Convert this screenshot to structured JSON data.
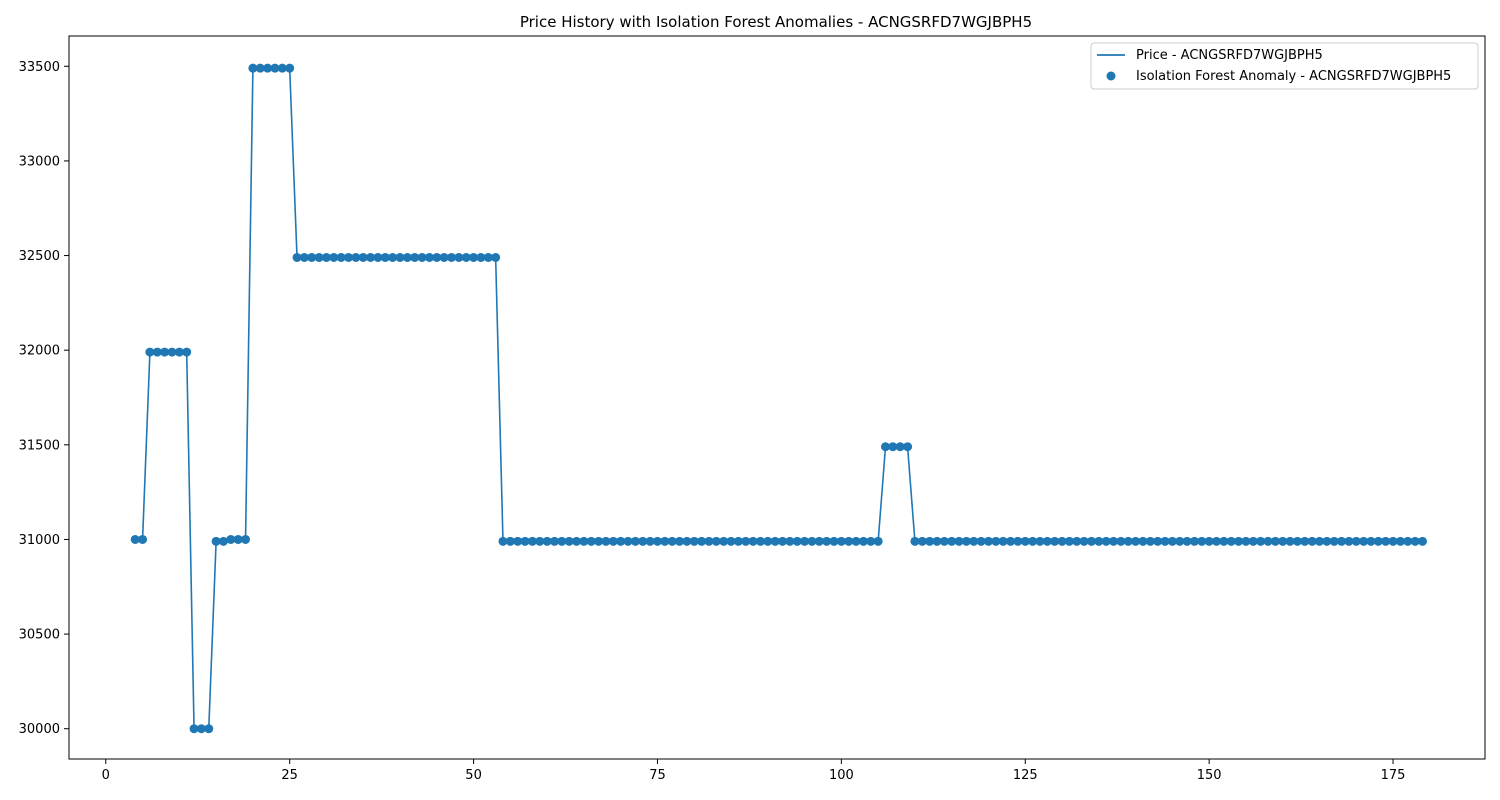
{
  "chart_data": {
    "type": "line",
    "title": "Price History with Isolation Forest Anomalies - ACNGSRFD7WGJBPH5",
    "xlabel": "",
    "ylabel": "",
    "xlim": [
      -5,
      187.5
    ],
    "ylim": [
      29840,
      33660
    ],
    "xticks": [
      0,
      25,
      50,
      75,
      100,
      125,
      150,
      175
    ],
    "yticks": [
      30000,
      30500,
      31000,
      31500,
      32000,
      32500,
      33000,
      33500
    ],
    "grid": false,
    "legend_position": "top-right",
    "colors": {
      "series": "#1f77b4"
    },
    "series": [
      {
        "name": "Price - ACNGSRFD7WGJBPH5",
        "kind": "line"
      },
      {
        "name": "Isolation Forest Anomaly - ACNGSRFD7WGJBPH5",
        "kind": "scatter"
      }
    ],
    "segments": [
      {
        "from": 4,
        "to": 5,
        "value": 31000
      },
      {
        "from": 6,
        "to": 11,
        "value": 31990
      },
      {
        "from": 12,
        "to": 14,
        "value": 30000
      },
      {
        "from": 15,
        "to": 16,
        "value": 30990
      },
      {
        "from": 17,
        "to": 19,
        "value": 31000
      },
      {
        "from": 20,
        "to": 25,
        "value": 33490
      },
      {
        "from": 26,
        "to": 53,
        "value": 32490
      },
      {
        "from": 54,
        "to": 105,
        "value": 30990
      },
      {
        "from": 106,
        "to": 109,
        "value": 31490
      },
      {
        "from": 110,
        "to": 179,
        "value": 30990
      }
    ]
  }
}
